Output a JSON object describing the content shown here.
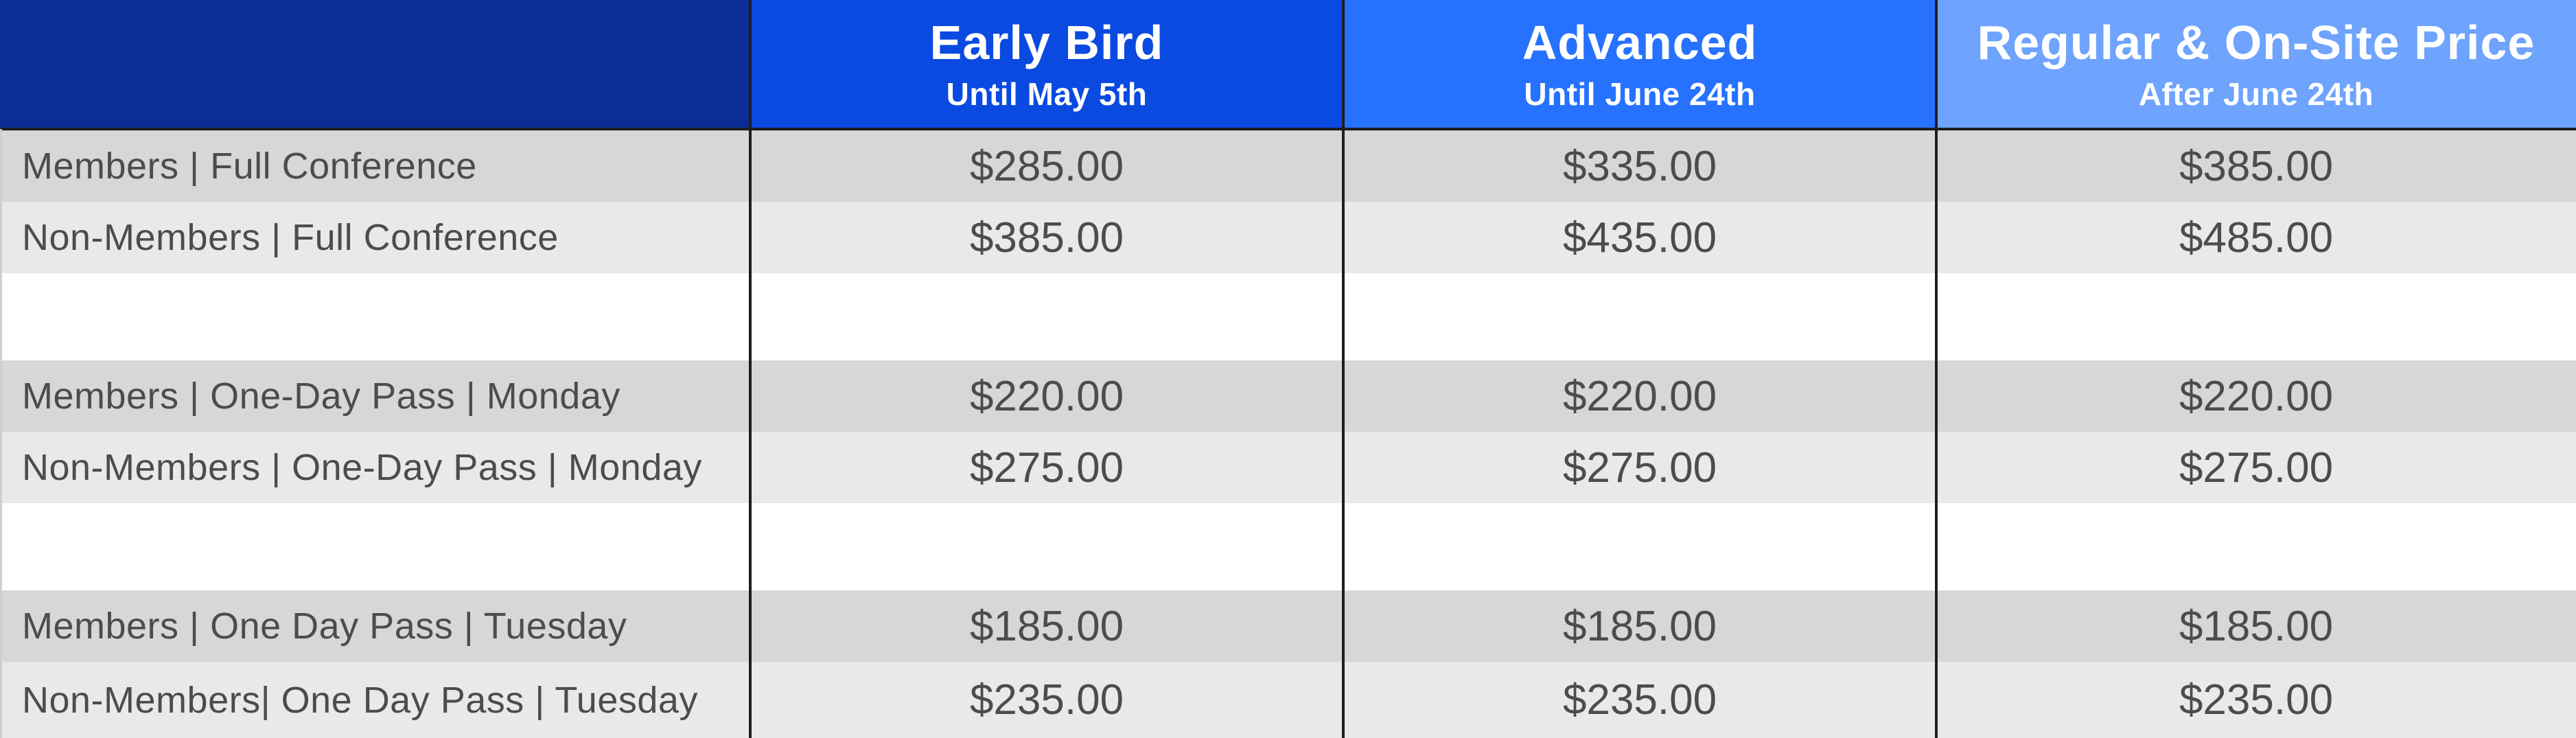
{
  "header": {
    "columns": [
      {
        "title": "Early Bird",
        "subtitle": "Until May 5th",
        "color": "#0a4ae0"
      },
      {
        "title": "Advanced",
        "subtitle": "Until June 24th",
        "color": "#2672ff"
      },
      {
        "title": "Regular & On-Site Price",
        "subtitle": "After June 24th",
        "color": "#6ea3fe"
      }
    ],
    "corner_color": "#0c2d96"
  },
  "rows": [
    {
      "label": "Members | Full Conference",
      "early": "$285.00",
      "advanced": "$335.00",
      "regular": "$385.00"
    },
    {
      "label": "Non-Members | Full Conference",
      "early": "$385.00",
      "advanced": "$435.00",
      "regular": "$485.00"
    },
    {
      "label": "Members | One-Day Pass | Monday",
      "early": "$220.00",
      "advanced": "$220.00",
      "regular": "$220.00"
    },
    {
      "label": "Non-Members | One-Day Pass | Monday",
      "early": "$275.00",
      "advanced": "$275.00",
      "regular": "$275.00"
    },
    {
      "label": "Members | One Day Pass | Tuesday",
      "early": "$185.00",
      "advanced": "$185.00",
      "regular": "$185.00"
    },
    {
      "label": "Non-Members| One Day Pass | Tuesday",
      "early": "$235.00",
      "advanced": "$235.00",
      "regular": "$235.00"
    }
  ],
  "colors": {
    "row_dark": "#d7d7d7",
    "row_light": "#e8eaea",
    "text": "#4c4c4c",
    "divider": "#1e1e1e"
  }
}
